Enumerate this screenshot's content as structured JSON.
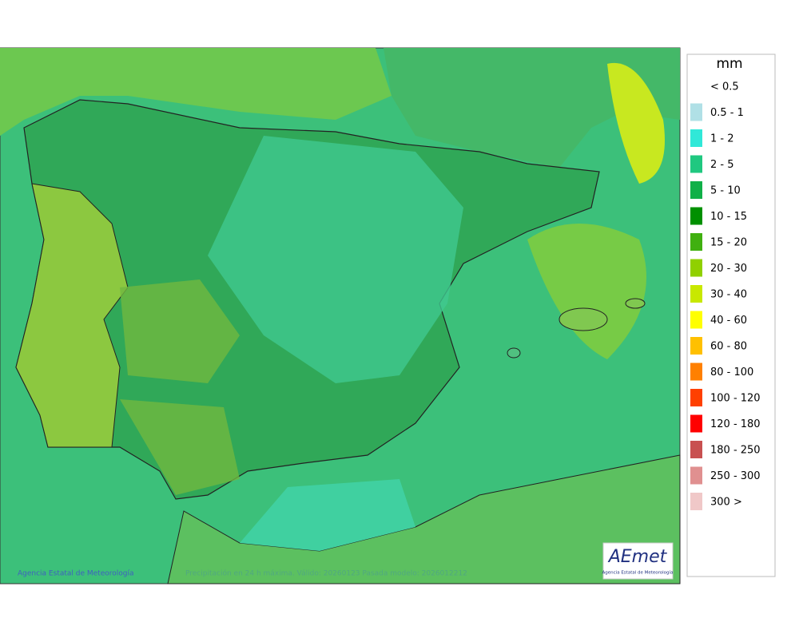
{
  "legend": {
    "title": "mm",
    "items": [
      {
        "label": "< 0.5"
      },
      {
        "label": "0.5 - 1",
        "color": "#b0e0e6"
      },
      {
        "label": "1 - 2",
        "color": "#30e8d8"
      },
      {
        "label": "2 - 5",
        "color": "#20c880"
      },
      {
        "label": "5 - 10",
        "color": "#10b048"
      },
      {
        "label": "10 - 15",
        "color": "#009000"
      },
      {
        "label": "15 - 20",
        "color": "#40b010"
      },
      {
        "label": "20 - 30",
        "color": "#90d000"
      },
      {
        "label": "30 - 40",
        "color": "#c8e800"
      },
      {
        "label": "40 - 60",
        "color": "#ffff00"
      },
      {
        "label": "60 - 80",
        "color": "#ffc000"
      },
      {
        "label": "80 - 100",
        "color": "#ff8000"
      },
      {
        "label": "100 - 120",
        "color": "#ff4000"
      },
      {
        "label": "120 - 180",
        "color": "#ff0000"
      },
      {
        "label": "180 - 250",
        "color": "#c85050"
      },
      {
        "label": "250 - 300",
        "color": "#e09090"
      },
      {
        "label": "300 >",
        "color": "#f0c8c8"
      }
    ]
  },
  "footer": {
    "copyright": "Agencia Estatal de Meteorología",
    "caption": "Precipitación en 24 h máxima. Válido: 20260123 Pasada modelo: 2026012212"
  },
  "logo": {
    "name": "AEmet",
    "subtitle": "Agencia Estatal de Meteorología"
  }
}
